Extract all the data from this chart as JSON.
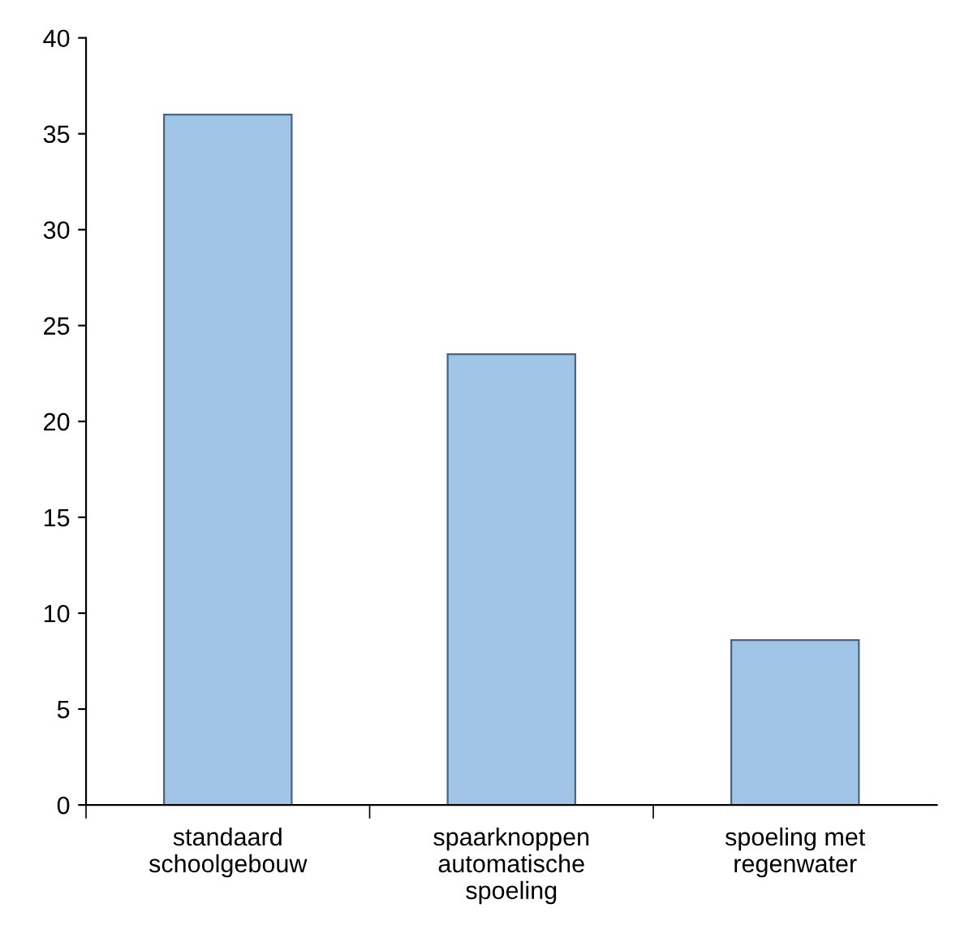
{
  "chart_data": {
    "type": "bar",
    "categories": [
      "standaard\nschoolgebouw",
      "spaarknoppen\nautomatische\nspoeling",
      "spoeling met\nregenwater"
    ],
    "values": [
      36,
      23.5,
      8.6
    ],
    "color": "#a0c5e7",
    "ylim": [
      0,
      40
    ],
    "yticks": [
      0,
      5,
      10,
      15,
      20,
      25,
      30,
      35,
      40
    ],
    "grid": false
  }
}
